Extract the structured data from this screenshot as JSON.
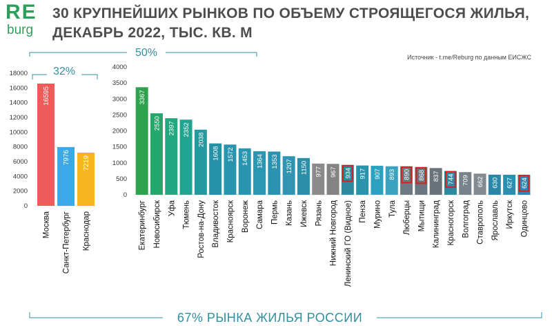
{
  "brand": {
    "logo_top": "RE",
    "logo_bottom": "burg"
  },
  "header": {
    "title_line1": "30 КРУПНЕЙШИХ РЫНКОВ ПО ОБЪЕМУ СТРОЯЩЕГОСЯ ЖИЛЬЯ,",
    "title_line2": "ДЕКАБРЬ 2022, ТЫС. КВ. М"
  },
  "source": "Источник - t.me/Reburg по данным ЕИСЖС",
  "annotations": {
    "left_share": "32%",
    "mid_share": "50%",
    "bottom_share": "67% РЫНКА ЖИЛЬЯ РОССИИ"
  },
  "colors": {
    "brand_green": "#2e9e5b",
    "accent_teal": "#2f8fa0",
    "highlight_red": "#d42020"
  },
  "chart_data": [
    {
      "type": "bar",
      "ylim": [
        0,
        18000
      ],
      "yticks": [
        0,
        2000,
        4000,
        6000,
        8000,
        10000,
        12000,
        14000,
        16000,
        18000
      ],
      "categories": [
        "Москва",
        "Санкт-Петербург",
        "Краснодар"
      ],
      "values": [
        16595,
        7976,
        7219
      ],
      "data_labels": [
        "16595",
        "7976",
        "7219"
      ],
      "colors": [
        "#ef5b5b",
        "#3ba8e8",
        "#f7b51e"
      ]
    },
    {
      "type": "bar",
      "ylim": [
        0,
        4000
      ],
      "yticks": [
        0,
        500,
        1000,
        1500,
        2000,
        2500,
        3000,
        3500,
        4000
      ],
      "categories": [
        "Екатеринбург",
        "Новосибирск",
        "Уфа",
        "Тюмень",
        "Ростов-на-Дону",
        "Владивосток",
        "Красноярск",
        "Воронеж",
        "Самара",
        "Пермь",
        "Казань",
        "Ижевск",
        "Рязань",
        "Нижний Новгород",
        "Ленинский ГО (Видное)",
        "Пенза",
        "Мурино",
        "Тула",
        "Люберцы",
        "Мытищи",
        "Калининград",
        "Красногорск",
        "Волгоград",
        "Ставрополь",
        "Ярославль",
        "Иркутск",
        "Одинцово"
      ],
      "values": [
        3367,
        2550,
        2397,
        2352,
        2038,
        1608,
        1572,
        1453,
        1364,
        1353,
        1207,
        1150,
        977,
        967,
        934,
        917,
        907,
        893,
        890,
        868,
        837,
        744,
        709,
        662,
        630,
        627,
        624
      ],
      "data_labels": [
        "3367",
        "2550",
        "2397",
        "2352",
        "2038",
        "1608",
        "1572",
        "1453",
        "1364",
        "1353",
        "1207",
        "1150",
        "977",
        "967",
        "934",
        "917",
        "907",
        "893",
        "890",
        "868",
        "837",
        "744",
        "709",
        "662",
        "630",
        "627",
        "624"
      ],
      "colors": [
        "#2ea24e",
        "#24a76a",
        "#22a880",
        "#22a492",
        "#239aa0",
        "#2591a8",
        "#2894ae",
        "#2896b0",
        "#2c97b3",
        "#2b93b0",
        "#2f95b2",
        "#2c8ea8",
        "#8a8a8a",
        "#838383",
        "#2f8aa1",
        "#2c93ad",
        "#2da1c2",
        "#3aa3c0",
        "#6c7a84",
        "#6a7780",
        "#6a727a",
        "#2f8aa1",
        "#78828a",
        "#838a90",
        "#2d86a6",
        "#2d8fb0",
        "#2e86b0"
      ],
      "highlighted": [
        "Ленинский ГО (Видное)",
        "Люберцы",
        "Мытищи",
        "Красногорск",
        "Одинцово"
      ]
    }
  ]
}
